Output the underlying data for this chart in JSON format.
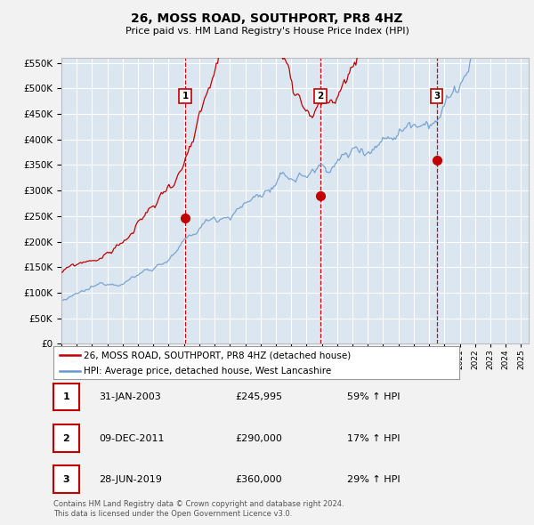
{
  "title": "26, MOSS ROAD, SOUTHPORT, PR8 4HZ",
  "subtitle": "Price paid vs. HM Land Registry's House Price Index (HPI)",
  "red_label": "26, MOSS ROAD, SOUTHPORT, PR8 4HZ (detached house)",
  "blue_label": "HPI: Average price, detached house, West Lancashire",
  "footer1": "Contains HM Land Registry data © Crown copyright and database right 2024.",
  "footer2": "This data is licensed under the Open Government Licence v3.0.",
  "sales": [
    {
      "num": 1,
      "date": "31-JAN-2003",
      "price": "£245,995",
      "change": "59% ↑ HPI",
      "year": 2003.08,
      "value": 245995
    },
    {
      "num": 2,
      "date": "09-DEC-2011",
      "price": "£290,000",
      "change": "17% ↑ HPI",
      "year": 2011.92,
      "value": 290000
    },
    {
      "num": 3,
      "date": "28-JUN-2019",
      "price": "£360,000",
      "change": "29% ↑ HPI",
      "year": 2019.5,
      "value": 360000
    }
  ],
  "ylim": [
    0,
    560000
  ],
  "xlim": [
    1995.0,
    2025.5
  ],
  "background_color": "#dce6f1",
  "fig_color": "#f2f2f2",
  "grid_color": "#ffffff",
  "red_color": "#c00000",
  "blue_color": "#6699cc",
  "vline_color": "#cc0000"
}
